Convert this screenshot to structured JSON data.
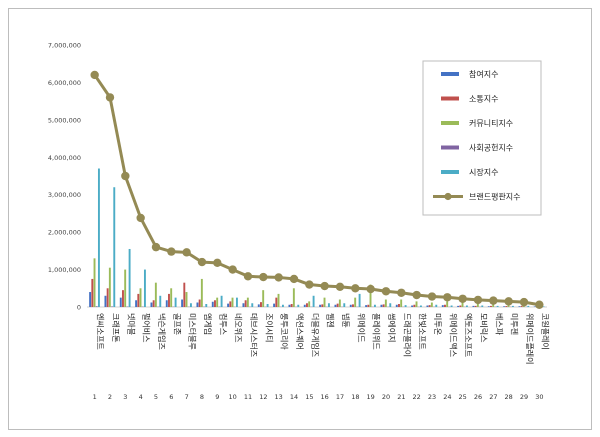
{
  "chart_data": {
    "type": "bar",
    "title": "",
    "xlabel": "",
    "ylabel": "",
    "ylim": [
      0,
      7000000
    ],
    "y_ticks": [
      "0",
      "1,000,000",
      "2,000,000",
      "3,000,000",
      "4,000,000",
      "5,000,000",
      "6,000,000",
      "7,000,000"
    ],
    "grid": false,
    "legend_position": "top-right",
    "categories": [
      "엔씨소프트",
      "크래프톤",
      "넷마블",
      "펄어비스",
      "넥슨게임즈",
      "골프존",
      "미스터블루",
      "엠게임",
      "컴투스",
      "네오위즈",
      "데브시스터즈",
      "조이시티",
      "룽투코리아",
      "액션스퀘어",
      "더블유게임즈",
      "웹젠",
      "넵튠",
      "위메이드",
      "플레이위드",
      "썸에이지",
      "드래곤플라이",
      "한빛소프트",
      "미투온",
      "위메이드맥스",
      "액토즈소프트",
      "모비릭스",
      "베스파",
      "미투젠",
      "위메이드플레이",
      "코원플레이"
    ],
    "ranks": [
      "1",
      "2",
      "3",
      "4",
      "5",
      "6",
      "7",
      "8",
      "9",
      "10",
      "11",
      "12",
      "13",
      "14",
      "15",
      "16",
      "17",
      "18",
      "19",
      "20",
      "21",
      "22",
      "23",
      "24",
      "25",
      "26",
      "27",
      "28",
      "29",
      "30"
    ],
    "series": [
      {
        "name": "참여지수",
        "color": "#4472c4",
        "values": [
          400000,
          300000,
          250000,
          180000,
          120000,
          180000,
          200000,
          120000,
          140000,
          90000,
          100000,
          70000,
          90000,
          60000,
          60000,
          60000,
          60000,
          60000,
          50000,
          60000,
          60000,
          40000,
          40000,
          50000,
          30000,
          30000,
          20000,
          20000,
          20000,
          15000
        ]
      },
      {
        "name": "소통지수",
        "color": "#c0504d",
        "values": [
          750000,
          500000,
          450000,
          350000,
          180000,
          350000,
          650000,
          200000,
          180000,
          150000,
          180000,
          130000,
          250000,
          80000,
          100000,
          70000,
          90000,
          70000,
          60000,
          70000,
          80000,
          60000,
          50000,
          60000,
          40000,
          30000,
          30000,
          25000,
          25000,
          20000
        ]
      },
      {
        "name": "커뮤니티지수",
        "color": "#9bbb59",
        "values": [
          1300000,
          1050000,
          1000000,
          500000,
          650000,
          500000,
          400000,
          750000,
          250000,
          250000,
          250000,
          450000,
          350000,
          500000,
          150000,
          250000,
          200000,
          250000,
          600000,
          200000,
          200000,
          150000,
          120000,
          150000,
          120000,
          100000,
          80000,
          90000,
          80000,
          40000
        ]
      },
      {
        "name": "사회공헌지수",
        "color": "#8064a2",
        "values": [
          20000,
          15000,
          12000,
          10000,
          8000,
          8000,
          8000,
          8000,
          8000,
          6000,
          6000,
          6000,
          6000,
          6000,
          6000,
          6000,
          6000,
          6000,
          6000,
          6000,
          6000,
          6000,
          6000,
          6000,
          6000,
          6000,
          6000,
          6000,
          6000,
          6000
        ]
      },
      {
        "name": "시장지수",
        "color": "#4bacc6",
        "values": [
          3700000,
          3200000,
          1550000,
          1000000,
          300000,
          250000,
          100000,
          80000,
          300000,
          250000,
          100000,
          80000,
          60000,
          60000,
          300000,
          100000,
          100000,
          350000,
          60000,
          100000,
          50000,
          40000,
          60000,
          40000,
          40000,
          40000,
          30000,
          30000,
          30000,
          15000
        ]
      },
      {
        "name": "브랜드평판지수",
        "color": "#948a54",
        "type": "line",
        "values": [
          6200000,
          5600000,
          3500000,
          2380000,
          1600000,
          1480000,
          1460000,
          1200000,
          1180000,
          1000000,
          820000,
          800000,
          790000,
          750000,
          600000,
          560000,
          540000,
          500000,
          480000,
          420000,
          380000,
          320000,
          280000,
          260000,
          220000,
          190000,
          170000,
          150000,
          130000,
          60000
        ]
      }
    ]
  }
}
